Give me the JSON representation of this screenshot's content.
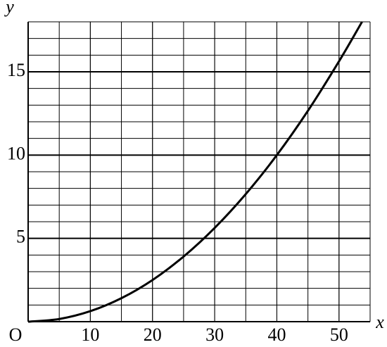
{
  "chart_data": {
    "type": "line",
    "x_label": "x",
    "y_label": "y",
    "origin_label": "O",
    "xlim": [
      0,
      55
    ],
    "ylim": [
      0,
      18
    ],
    "xticks": [
      10,
      20,
      30,
      40,
      50
    ],
    "yticks": [
      5,
      10,
      15
    ],
    "grid": true,
    "minor_grid": {
      "x": 5,
      "y": 1
    },
    "series": [
      {
        "color": "#000000",
        "x": [
          0,
          5,
          10,
          15,
          20,
          25,
          30,
          35,
          40,
          45,
          50,
          53.7
        ],
        "values": [
          0,
          0.16,
          0.63,
          1.41,
          2.5,
          3.91,
          5.63,
          7.66,
          10,
          12.66,
          15.63,
          18
        ]
      }
    ]
  }
}
